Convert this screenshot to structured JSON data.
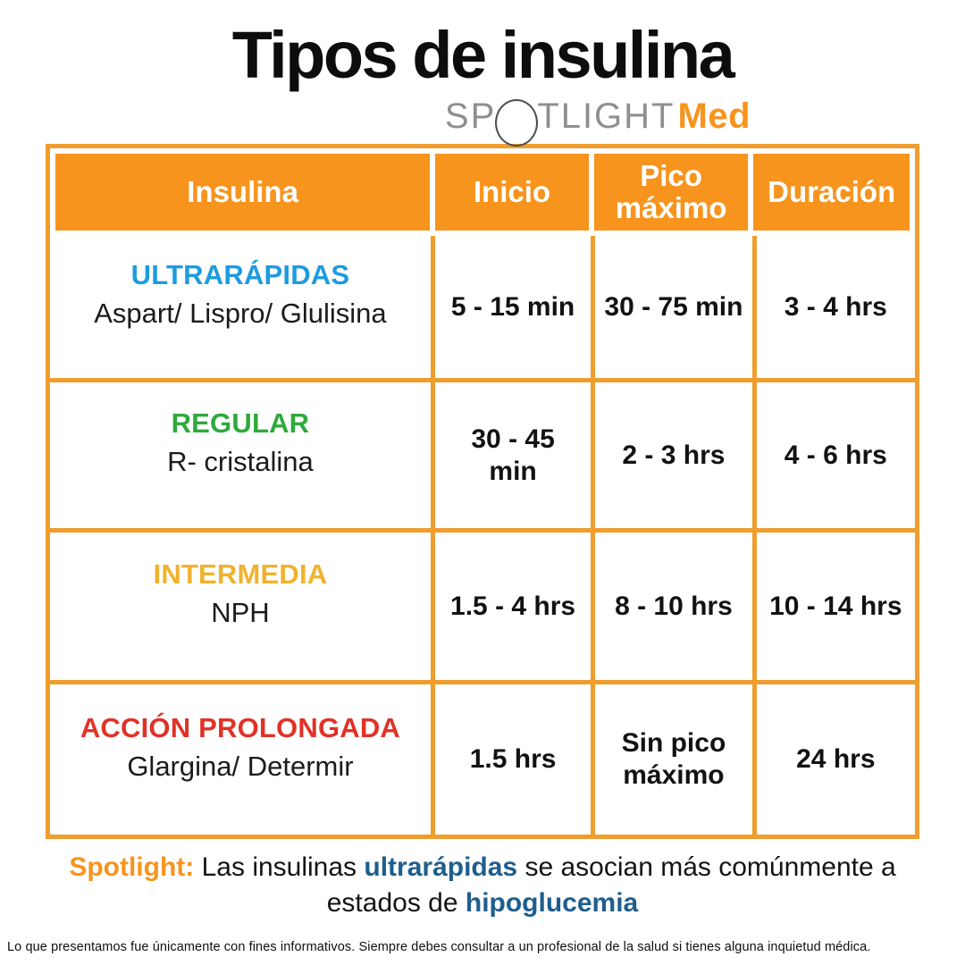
{
  "title": "Tipos de insulina",
  "logo": {
    "text_before_circle": "SP",
    "text_after_circle": "TLIGHT",
    "brand_suffix": "Med"
  },
  "table": {
    "headers": [
      "Insulina",
      "Inicio",
      "Pico máximo",
      "Duración"
    ],
    "rows": [
      {
        "name": "ULTRARÁPIDAS",
        "examples": "Aspart/ Lispro/ Glulisina",
        "inicio": "5 - 15 min",
        "pico_maximo": "30 - 75 min",
        "duracion": "3 - 4 hrs",
        "color": "#1E9BE0"
      },
      {
        "name": "REGULAR",
        "examples": "R- cristalina",
        "inicio": "30 - 45 min",
        "pico_maximo": "2 - 3 hrs",
        "duracion": "4 - 6 hrs",
        "color": "#2FA93C"
      },
      {
        "name": "INTERMEDIA",
        "examples": "NPH",
        "inicio": "1.5 - 4 hrs",
        "pico_maximo": "8 - 10 hrs",
        "duracion": "10 - 14 hrs",
        "color": "#F0B22E"
      },
      {
        "name": "ACCIÓN PROLONGADA",
        "examples": "Glargina/ Determir",
        "inicio": "1.5 hrs",
        "pico_maximo": "Sin pico máximo",
        "duracion": "24 hrs",
        "color": "#E03228"
      }
    ]
  },
  "note": {
    "label": "Spotlight:",
    "text_1": "Las insulinas",
    "highlight_1": "ultrarápidas",
    "text_2": "se asocian más comúnmente a estados de",
    "highlight_2": "hipoglucemia"
  },
  "disclaimer": "Lo que presentamos fue únicamente con fines informativos. Siempre debes consultar a un profesional de la salud si tienes alguna inquietud médica.",
  "colors": {
    "orange": "#F7941D",
    "grid-orange": "#EF9D2F",
    "navy": "#1E5E8E",
    "logo-gray": "#8F8F8F"
  },
  "chart_data": {
    "type": "table",
    "title": "Tipos de insulina",
    "columns": [
      "Insulina",
      "Inicio",
      "Pico máximo",
      "Duración"
    ],
    "rows": [
      [
        "ULTRARÁPIDAS (Aspart/ Lispro/ Glulisina)",
        "5 - 15 min",
        "30 - 75 min",
        "3 - 4 hrs"
      ],
      [
        "REGULAR (R- cristalina)",
        "30 - 45 min",
        "2 - 3 hrs",
        "4 - 6 hrs"
      ],
      [
        "INTERMEDIA (NPH)",
        "1.5 - 4 hrs",
        "8 - 10 hrs",
        "10 - 14 hrs"
      ],
      [
        "ACCIÓN PROLONGADA (Glargina/ Determir)",
        "1.5 hrs",
        "Sin pico máximo",
        "24 hrs"
      ]
    ]
  }
}
